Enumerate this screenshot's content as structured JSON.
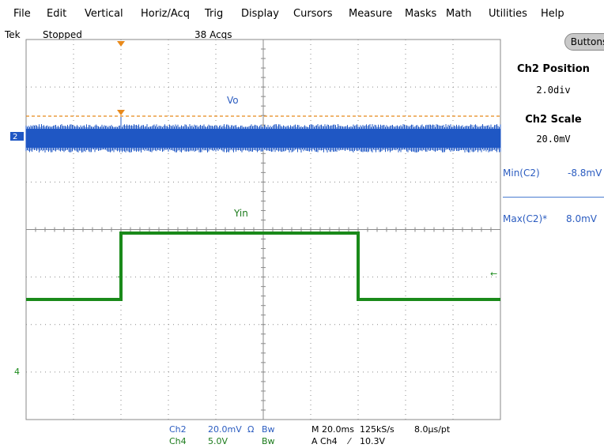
{
  "menu": [
    "File",
    "Edit",
    "Vertical",
    "Horiz/Acq",
    "Trig",
    "Display",
    "Cursors",
    "Measure",
    "Masks",
    "Math",
    "Utilities",
    "Help"
  ],
  "status": {
    "brand": "Tek",
    "state": "Stopped",
    "acqs": "38 Acqs"
  },
  "buttons_label": "Buttons",
  "side": {
    "position_title": "Ch2 Position",
    "position_value": "2.0div",
    "scale_title": "Ch2 Scale",
    "scale_value": "20.0mV",
    "min_label": "Min(C2)",
    "min_value": "-8.8mV",
    "max_label": "Max(C2)*",
    "max_value": "8.0mV"
  },
  "traces": {
    "vo_label": "Vo",
    "vin_label": "Yin",
    "ch2_marker": "2",
    "ch4_marker": "4",
    "trig_marker": "T"
  },
  "bottom": {
    "ch2": "Ch2",
    "ch2_scale": "20.0mV",
    "ch2_sym": "Ω",
    "ch2_bw": "Bw",
    "ch4": "Ch4",
    "ch4_scale": "5.0V",
    "ch4_bw": "Bw",
    "timebase": "M 20.0ms",
    "rate": "125kS/s",
    "respt": "8.0μs/pt",
    "trig": "A  Ch4",
    "trig_slope": "⁄",
    "trig_level": "10.3V"
  },
  "colors": {
    "ch2": "#1f57c4",
    "ch4": "#1a8a1a",
    "trigger": "#e8891b",
    "grid": "#8a8a8a"
  }
}
